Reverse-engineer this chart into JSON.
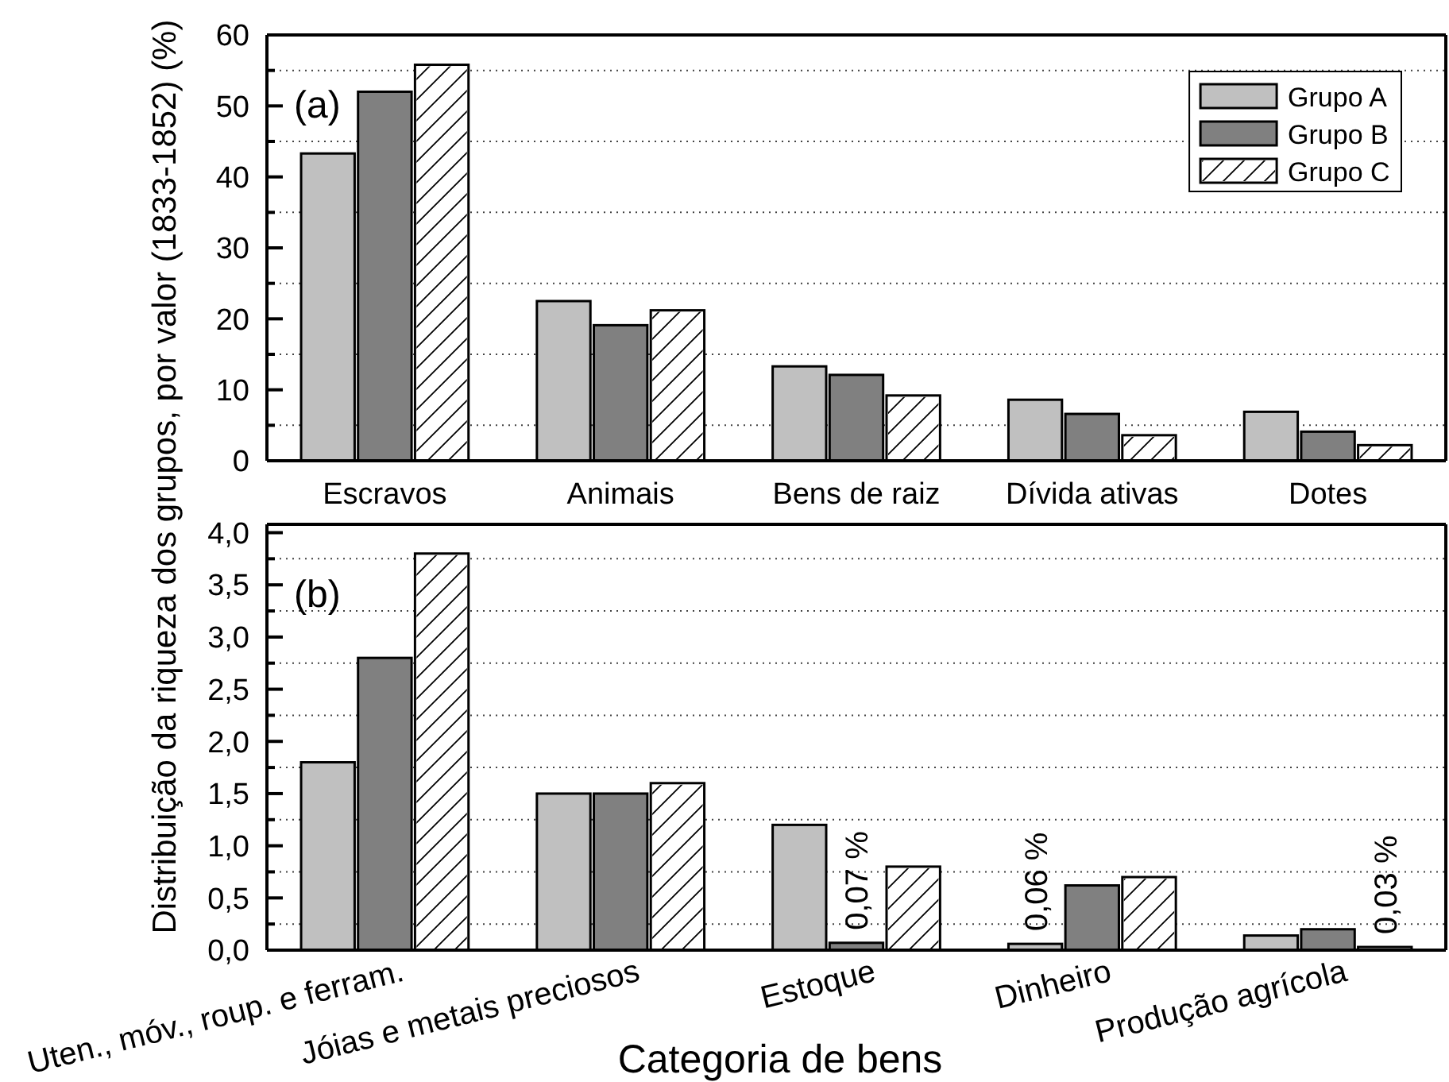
{
  "chart_data": [
    {
      "type": "bar",
      "categories": [
        "Escravos",
        "Animais",
        "Bens de raiz",
        "Dívida ativas",
        "Dotes"
      ],
      "series": [
        {
          "name": "Grupo A",
          "color": "#c0c0c0",
          "values": [
            43.3,
            22.5,
            13.3,
            8.6,
            6.9
          ]
        },
        {
          "name": "Grupo B",
          "color": "#808080",
          "values": [
            52,
            19.1,
            12.1,
            6.6,
            4.1
          ]
        },
        {
          "name": "Grupo C",
          "color": "#ffffff",
          "values": [
            55.8,
            21.2,
            9.2,
            3.6,
            2.2
          ]
        }
      ],
      "ylabel": "Distribuição da riqueza dos grupos, por valor (1833-1852) (%)",
      "ylim": [
        0,
        60
      ],
      "yticks": [
        0,
        {
          "value": 5,
          "label": null
        },
        10,
        {
          "value": 15,
          "label": null
        },
        20,
        {
          "value": 25,
          "label": null
        },
        30,
        {
          "value": 35,
          "label": null
        },
        40,
        {
          "value": 45,
          "label": null
        },
        50,
        {
          "value": 55,
          "label": null
        },
        60
      ],
      "grid": "y",
      "legend": "top right",
      "annotations": [
        "(a)"
      ]
    },
    {
      "type": "bar",
      "categories": [
        "Uten., móv., roup. e ferram.",
        "Jóias e metais preciosos",
        "Estoque",
        "Dinheiro",
        "Produção agrícola"
      ],
      "series": [
        {
          "color": "#c0c0c0",
          "values": [
            1.8,
            1.5,
            1.2,
            0.06,
            0.14
          ],
          "value_labels": [
            null,
            null,
            null,
            "0,06 %",
            null
          ]
        },
        {
          "color": "#808080",
          "values": [
            2.8,
            1.5,
            0.07,
            0.62,
            0.2
          ],
          "value_labels": [
            null,
            null,
            "0,07 %",
            null,
            null
          ]
        },
        {
          "color": "#ffffff",
          "values": [
            3.8,
            1.6,
            0.8,
            0.7,
            0.03
          ],
          "value_labels": [
            null,
            null,
            null,
            null,
            "0,03 %"
          ]
        }
      ],
      "xlabel": "Categoria de bens",
      "ylim": [
        0,
        4.08
      ],
      "yticks": [
        {
          "value": 0,
          "label": "0,0"
        },
        {
          "value": 0.25,
          "label": null
        },
        {
          "value": 0.5,
          "label": "0,5"
        },
        {
          "value": 0.75,
          "label": null
        },
        {
          "value": 1,
          "label": "1,0"
        },
        {
          "value": 1.25,
          "label": null
        },
        {
          "value": 1.5,
          "label": "1,5"
        },
        {
          "value": 1.75,
          "label": null
        },
        {
          "value": 2,
          "label": "2,0"
        },
        {
          "value": 2.25,
          "label": null
        },
        {
          "value": 2.5,
          "label": "2,5"
        },
        {
          "value": 2.75,
          "label": null
        },
        {
          "value": 3,
          "label": "3,0"
        },
        {
          "value": 3.25,
          "label": null
        },
        {
          "value": 3.5,
          "label": "3,5"
        },
        {
          "value": 3.75,
          "label": null
        },
        {
          "value": 4,
          "label": "4,0"
        }
      ],
      "grid": "y",
      "annotations": [
        "(b)"
      ]
    }
  ]
}
